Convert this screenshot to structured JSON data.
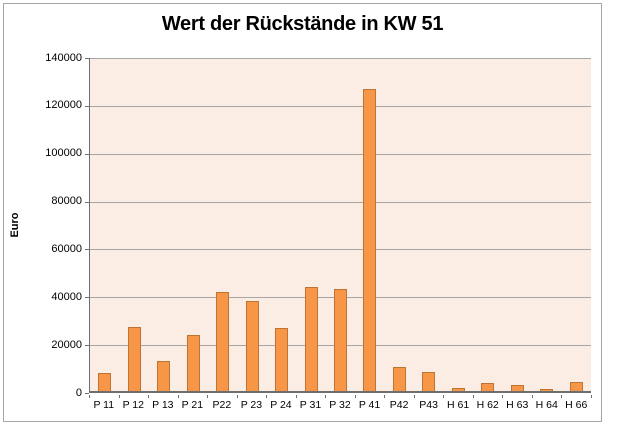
{
  "chart_data": {
    "type": "bar",
    "title": "Wert der Rückstände in KW 51",
    "xlabel": "",
    "ylabel": "Euro",
    "categories": [
      "P 11",
      "P 12",
      "P 13",
      "P 21",
      "P22",
      "P 23",
      "P 24",
      "P 31",
      "P 32",
      "P 41",
      "P42",
      "P43",
      "H 61",
      "H 62",
      "H 63",
      "H 64",
      "H 66"
    ],
    "values": [
      7500,
      27000,
      12500,
      23500,
      41500,
      38000,
      26500,
      43800,
      43000,
      127000,
      10300,
      8200,
      1400,
      3300,
      2500,
      900,
      3600
    ],
    "ylim": [
      0,
      140000
    ],
    "ytick_step": 20000,
    "ytick_labels": [
      "0",
      "20000",
      "40000",
      "60000",
      "80000",
      "100000",
      "120000",
      "140000"
    ],
    "grid": true,
    "legend": false,
    "colors": {
      "bar_fill": "#F79646",
      "bar_border": "#BE7433",
      "plot_background": "#FBEDE4",
      "gridline": "#A6A6A6",
      "axis_line": "#6E6E6E",
      "frame_border": "#A6A6A6",
      "text": "#000000"
    }
  }
}
